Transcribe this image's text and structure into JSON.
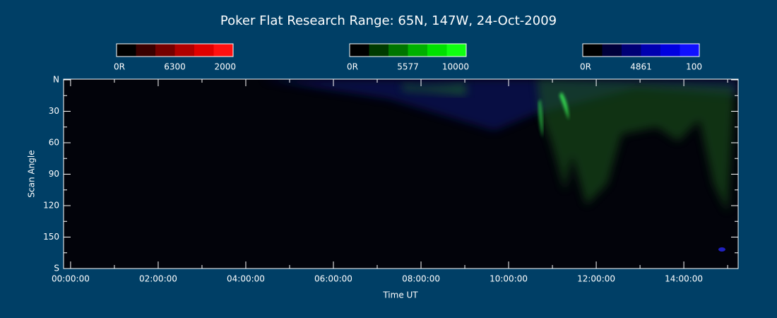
{
  "chart_data": {
    "type": "keogram",
    "title": "Poker Flat Research Range: 65N, 147W, 24-Oct-2009",
    "x_label": "Time UT",
    "y_label": "Scan Angle",
    "xlim": [
      -0.16,
      15.24
    ],
    "xticks": [
      {
        "value": 0,
        "label": "00:00:00"
      },
      {
        "value": 2,
        "label": "02:00:00"
      },
      {
        "value": 4,
        "label": "04:00:00"
      },
      {
        "value": 6,
        "label": "06:00:00"
      },
      {
        "value": 8,
        "label": "08:00:00"
      },
      {
        "value": 10,
        "label": "10:00:00"
      },
      {
        "value": 12,
        "label": "12:00:00"
      },
      {
        "value": 14,
        "label": "14:00:00"
      }
    ],
    "ylim": [
      0,
      180
    ],
    "yticks": [
      {
        "value": 0,
        "label": "N"
      },
      30,
      60,
      90,
      120,
      150,
      {
        "value": 180,
        "label": "S"
      }
    ],
    "colorbars": [
      {
        "min_label": "0R",
        "wavelength": "6300",
        "max": 2000,
        "colors": [
          "#000000",
          "#3a0000",
          "#750000",
          "#b00000",
          "#e00000",
          "#ff1010"
        ]
      },
      {
        "min_label": "0R",
        "wavelength": "5577",
        "max": 10000,
        "colors": [
          "#000000",
          "#003a00",
          "#007500",
          "#00b000",
          "#00e000",
          "#10ff10"
        ]
      },
      {
        "min_label": "0R",
        "wavelength": "4861",
        "max": 100,
        "colors": [
          "#000000",
          "#00003a",
          "#000075",
          "#0000b0",
          "#0000e0",
          "#1010ff"
        ]
      }
    ]
  }
}
